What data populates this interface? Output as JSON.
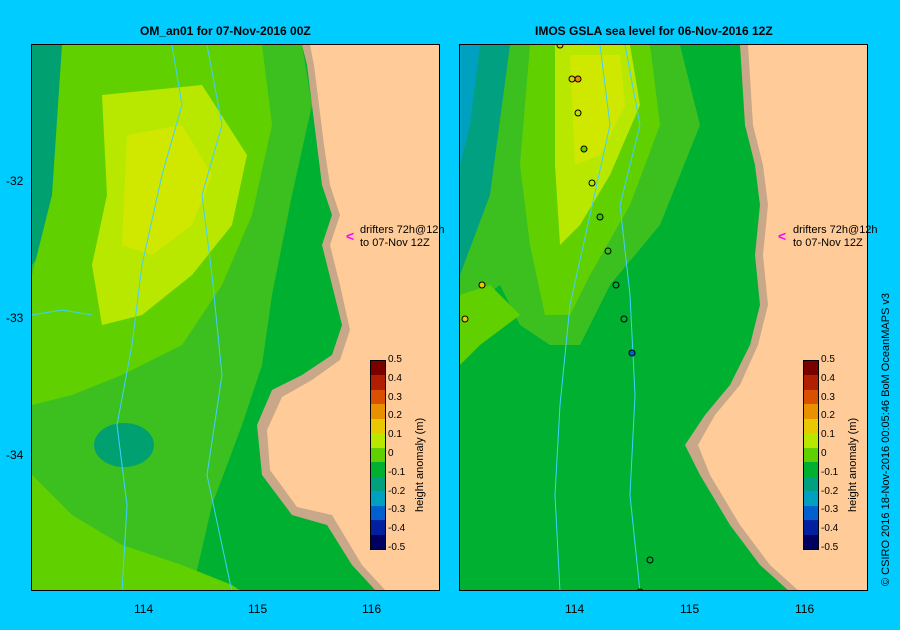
{
  "left_panel": {
    "title": "OM_an01  for 07-Nov-2016 00Z",
    "annotation_line1": "drifters 72h@12h",
    "annotation_line2": "to 07-Nov 12Z"
  },
  "right_panel": {
    "title": "IMOS  GSLA sea level  for 06-Nov-2016 12Z",
    "annotation_line1": "drifters 72h@12h",
    "annotation_line2": "to 07-Nov 12Z"
  },
  "axes": {
    "y_ticks": [
      "-32",
      "-33",
      "-34"
    ],
    "x_ticks_left": [
      "114",
      "115",
      "116"
    ],
    "x_ticks_right": [
      "114",
      "115",
      "116"
    ]
  },
  "colorbar": {
    "title": "height anomaly (m)",
    "labels": [
      "0.5",
      "0.4",
      "0.3",
      "0.2",
      "0.1",
      "0",
      "-0.1",
      "-0.2",
      "-0.3",
      "-0.4",
      "-0.5"
    ],
    "colors": [
      "#7a0000",
      "#b02000",
      "#d85000",
      "#e89000",
      "#e8c800",
      "#b8e800",
      "#60d000",
      "#00b030",
      "#00a080",
      "#00a0c0",
      "#0060d0",
      "#0020a0",
      "#000060"
    ]
  },
  "credit": "© CSIRO 2016   18-Nov-2016 00:05:46 BoM OceanMAPS v3",
  "colors": {
    "background": "#00ccff",
    "land": "#ffcc99",
    "shelf": "#c8a888",
    "drifter_arrow": "#ff00ff"
  }
}
